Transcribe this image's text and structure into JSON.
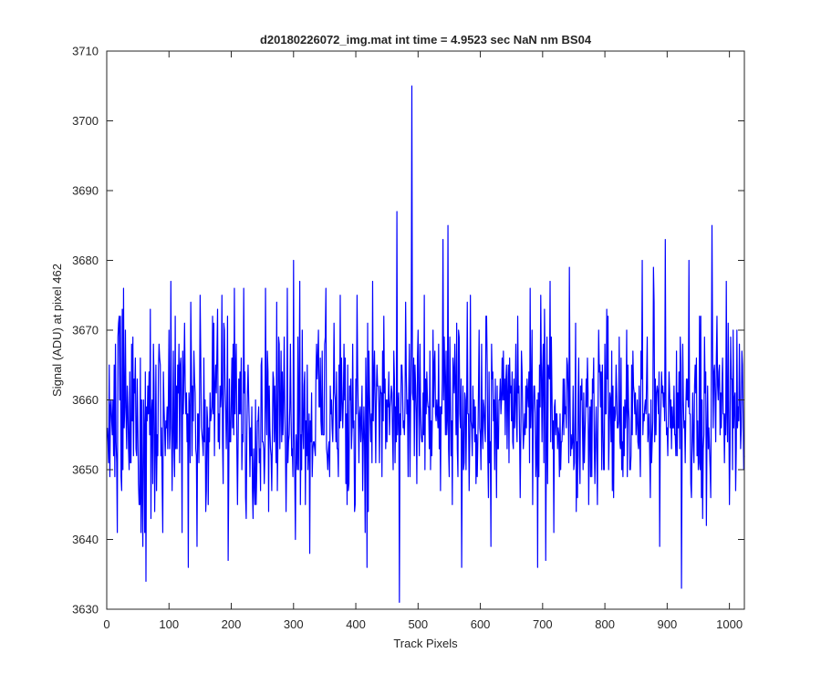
{
  "chart_data": {
    "type": "line",
    "title": "d20180226072_img.mat int time = 4.9523 sec  NaN nm BS04",
    "xlabel": "Track Pixels",
    "ylabel": "Signal (ADU) at pixel 462",
    "xlim": [
      0,
      1024
    ],
    "ylim": [
      3630,
      3710
    ],
    "xticks": [
      0,
      100,
      200,
      300,
      400,
      500,
      600,
      700,
      800,
      900,
      1000
    ],
    "yticks": [
      3630,
      3640,
      3650,
      3660,
      3670,
      3680,
      3690,
      3700,
      3710
    ],
    "grid": false,
    "legend": "none",
    "series": [
      {
        "color": "#0000ff",
        "x_start": 1,
        "x_step": 1,
        "count": 1024,
        "summary": {
          "mean": 3658,
          "min": 3631,
          "max": 3705,
          "min_at_x": 471,
          "max_at_x": 490
        },
        "key_points": [
          [
            1,
            3656
          ],
          [
            5,
            3649
          ],
          [
            10,
            3660
          ],
          [
            20,
            3672
          ],
          [
            25,
            3673
          ],
          [
            27,
            3676
          ],
          [
            30,
            3670
          ],
          [
            40,
            3668
          ],
          [
            52,
            3645
          ],
          [
            55,
            3641
          ],
          [
            58,
            3639
          ],
          [
            61,
            3641
          ],
          [
            63,
            3634
          ],
          [
            70,
            3673
          ],
          [
            75,
            3668
          ],
          [
            90,
            3641
          ],
          [
            100,
            3670
          ],
          [
            103,
            3677
          ],
          [
            110,
            3672
          ],
          [
            118,
            3665
          ],
          [
            121,
            3641
          ],
          [
            131,
            3636
          ],
          [
            135,
            3674
          ],
          [
            145,
            3639
          ],
          [
            150,
            3675
          ],
          [
            170,
            3672
          ],
          [
            177,
            3667
          ],
          [
            178,
            3673
          ],
          [
            185,
            3675
          ],
          [
            195,
            3637
          ],
          [
            205,
            3676
          ],
          [
            220,
            3676
          ],
          [
            240,
            3645
          ],
          [
            255,
            3676
          ],
          [
            265,
            3647
          ],
          [
            280,
            3667
          ],
          [
            290,
            3676
          ],
          [
            300,
            3680
          ],
          [
            303,
            3640
          ],
          [
            310,
            3677
          ],
          [
            320,
            3657
          ],
          [
            326,
            3638
          ],
          [
            340,
            3670
          ],
          [
            352,
            3676
          ],
          [
            365,
            3671
          ],
          [
            372,
            3649
          ],
          [
            375,
            3675
          ],
          [
            386,
            3645
          ],
          [
            395,
            3668
          ],
          [
            402,
            3675
          ],
          [
            412,
            3654
          ],
          [
            418,
            3636
          ],
          [
            427,
            3677
          ],
          [
            445,
            3672
          ],
          [
            466,
            3687
          ],
          [
            470,
            3631
          ],
          [
            474,
            3665
          ],
          [
            482,
            3658
          ],
          [
            487,
            3649
          ],
          [
            490,
            3705
          ],
          [
            492,
            3660
          ],
          [
            500,
            3670
          ],
          [
            510,
            3675
          ],
          [
            520,
            3650
          ],
          [
            540,
            3683
          ],
          [
            548,
            3685
          ],
          [
            555,
            3645
          ],
          [
            570,
            3636
          ],
          [
            584,
            3675
          ],
          [
            590,
            3660
          ],
          [
            598,
            3670
          ],
          [
            610,
            3672
          ],
          [
            617,
            3639
          ],
          [
            630,
            3660
          ],
          [
            645,
            3665
          ],
          [
            660,
            3672
          ],
          [
            680,
            3676
          ],
          [
            692,
            3636
          ],
          [
            697,
            3675
          ],
          [
            700,
            3664
          ],
          [
            705,
            3637
          ],
          [
            712,
            3677
          ],
          [
            720,
            3660
          ],
          [
            743,
            3679
          ],
          [
            750,
            3650
          ],
          [
            762,
            3660
          ],
          [
            772,
            3666
          ],
          [
            790,
            3670
          ],
          [
            805,
            3672
          ],
          [
            820,
            3656
          ],
          [
            840,
            3650
          ],
          [
            860,
            3680
          ],
          [
            878,
            3679
          ],
          [
            888,
            3639
          ],
          [
            897,
            3683
          ],
          [
            905,
            3656
          ],
          [
            915,
            3667
          ],
          [
            923,
            3633
          ],
          [
            935,
            3680
          ],
          [
            945,
            3665
          ],
          [
            960,
            3669
          ],
          [
            972,
            3685
          ],
          [
            980,
            3672
          ],
          [
            995,
            3677
          ],
          [
            1005,
            3650
          ],
          [
            1012,
            3670
          ],
          [
            1020,
            3667
          ],
          [
            1024,
            3652
          ]
        ]
      }
    ]
  }
}
